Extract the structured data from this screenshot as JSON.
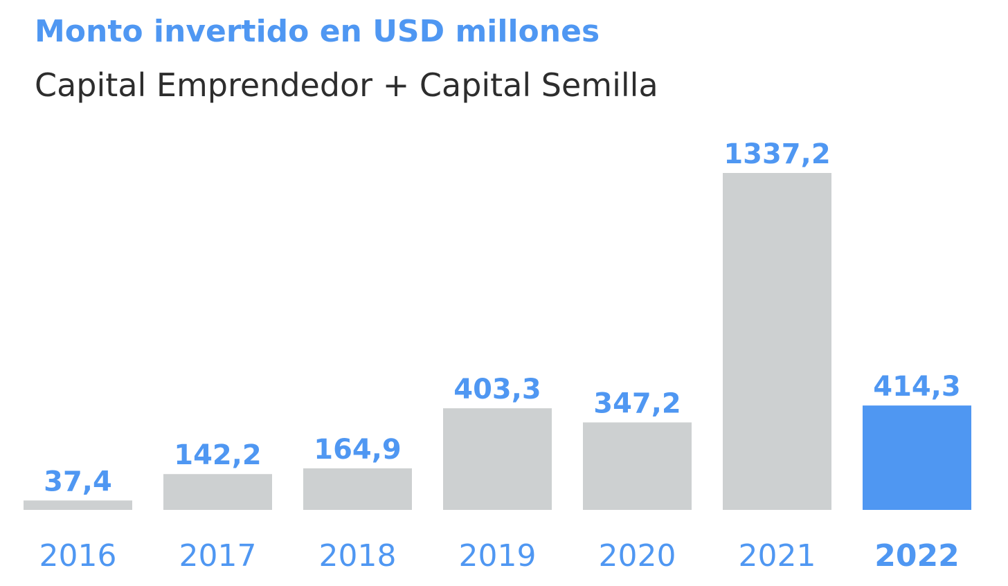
{
  "colors": {
    "accent": "#4f97f2",
    "bar_default": "#cdd0d1",
    "bar_highlight": "#4f97f2",
    "subtitle": "#2d2d2d"
  },
  "chart_data": {
    "type": "bar",
    "title": "Monto invertido en USD millones",
    "subtitle": "Capital Emprendedor + Capital Semilla",
    "categories": [
      "2016",
      "2017",
      "2018",
      "2019",
      "2020",
      "2021",
      "2022"
    ],
    "values": [
      37.4,
      142.2,
      164.9,
      403.3,
      347.2,
      1337.2,
      414.3
    ],
    "value_labels": [
      "37,4",
      "142,2",
      "164,9",
      "403,3",
      "347,2",
      "1337,2",
      "414,3"
    ],
    "highlight": "2022",
    "xlabel": "",
    "ylabel": "",
    "ylim": [
      0,
      1337.2
    ],
    "grid": false,
    "legend": "none"
  }
}
